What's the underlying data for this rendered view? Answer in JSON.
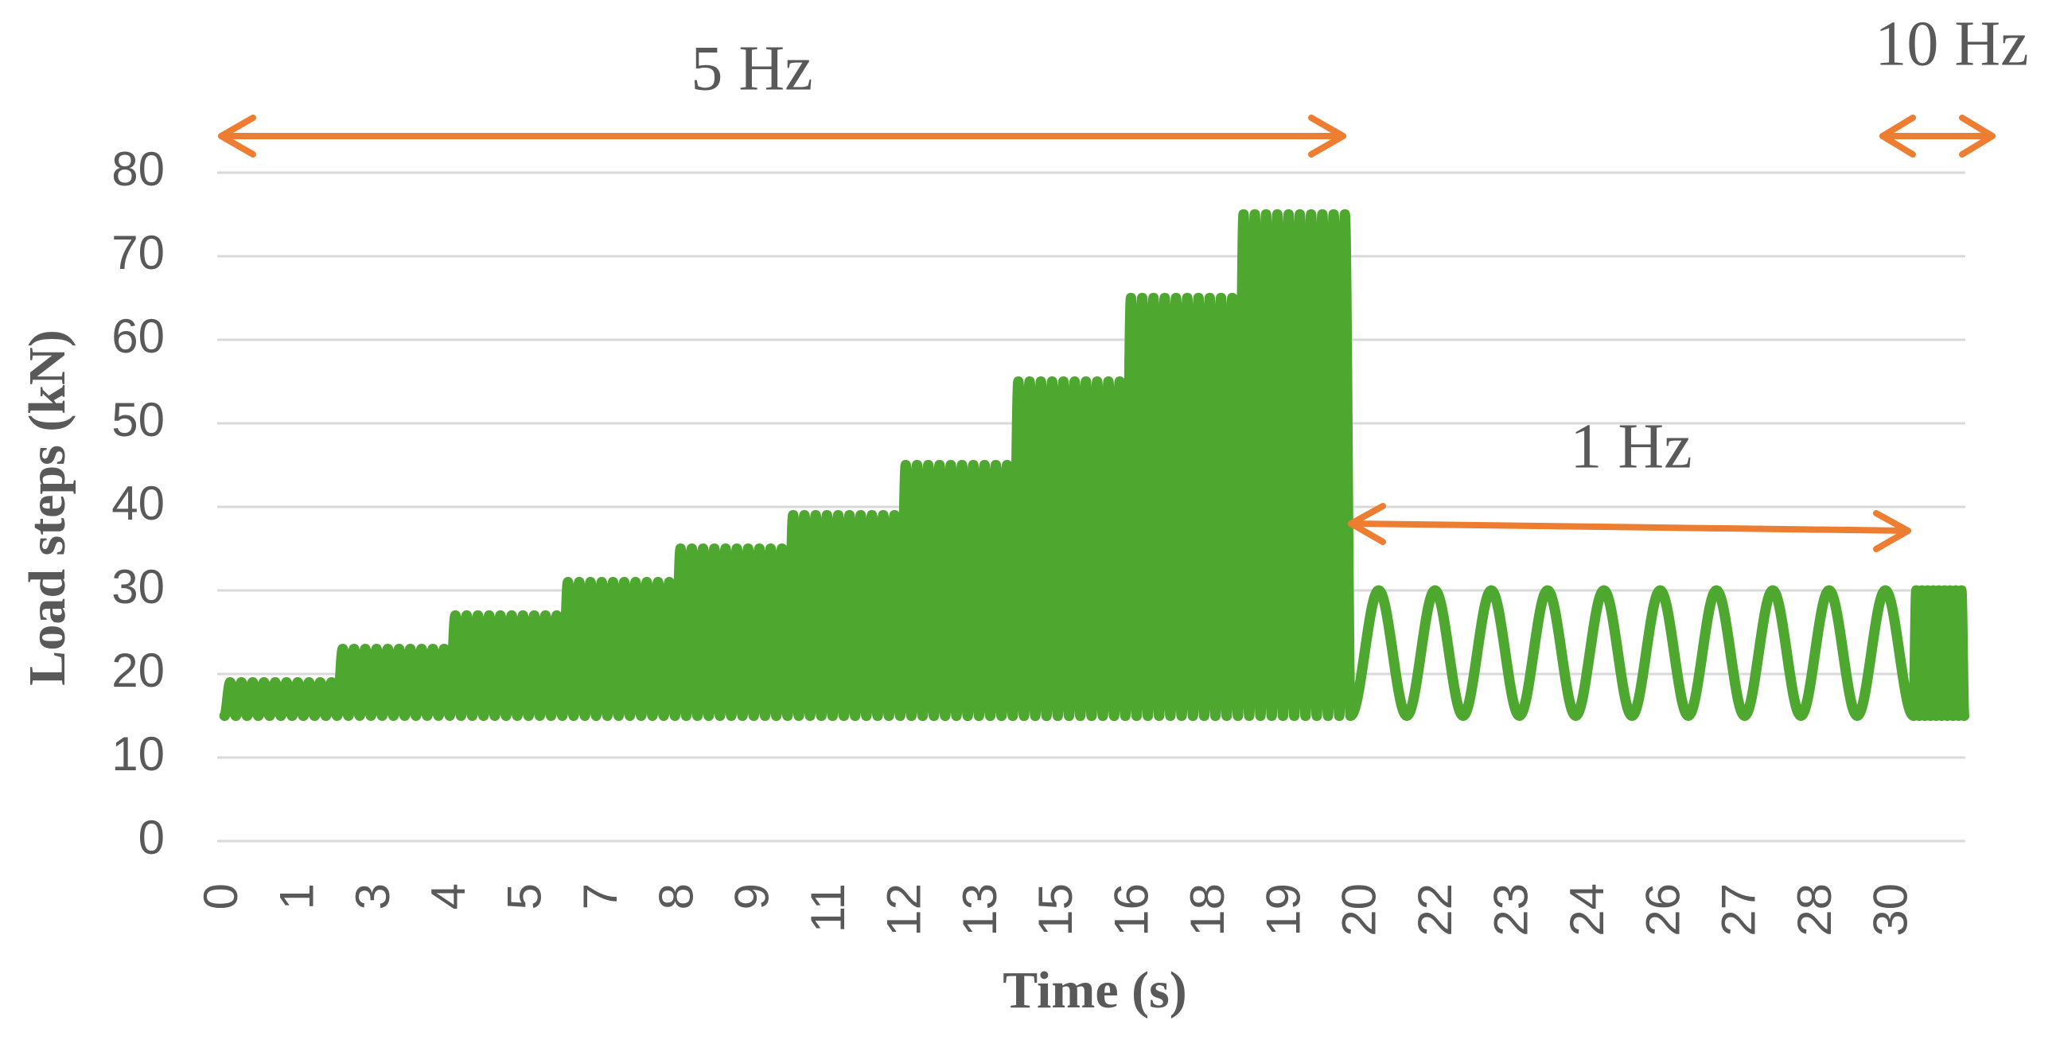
{
  "chart_data": {
    "type": "line",
    "x_label": "Time (s)",
    "y_label": "Load steps (kN)",
    "annotations": [
      "5 Hz",
      "1 Hz",
      "10 Hz"
    ],
    "annotation_color": "#ed7d31",
    "x": [
      0,
      0.1,
      0.2,
      0.3,
      0.4,
      0.5,
      0.6,
      0.7,
      0.8,
      0.9,
      1,
      1.1,
      1.2,
      1.3,
      1.4,
      1.5,
      1.6,
      1.7,
      1.8,
      1.9,
      2,
      2.1,
      2.2,
      2.3,
      2.4,
      2.5,
      2.6,
      2.7,
      2.8,
      2.9,
      3,
      3.1,
      3.2,
      3.3,
      3.4,
      3.5,
      3.6,
      3.7,
      3.8,
      3.9,
      4,
      4.1,
      4.2,
      4.3,
      4.4,
      4.5,
      4.6,
      4.7,
      4.8,
      4.9,
      5,
      5.1,
      5.2,
      5.3,
      5.4,
      5.5,
      5.6,
      5.7,
      5.8,
      5.9,
      6,
      6.1,
      6.2,
      6.3,
      6.4,
      6.5,
      6.6,
      6.7,
      6.8,
      6.9,
      7,
      7.1,
      7.2,
      7.3,
      7.4,
      7.5,
      7.6,
      7.7,
      7.8,
      7.9,
      8,
      8.1,
      8.2,
      8.3,
      8.4,
      8.5,
      8.6,
      8.7,
      8.8,
      8.9,
      9,
      9.1,
      9.2,
      9.3,
      9.4,
      9.5,
      9.6,
      9.7,
      9.8,
      9.9,
      10,
      10.1,
      10.2,
      10.3,
      10.4,
      10.5,
      10.6,
      10.7,
      10.8,
      10.9,
      11,
      11.1,
      11.2,
      11.3,
      11.4,
      11.5,
      11.6,
      11.7,
      11.8,
      11.9,
      12,
      12.1,
      12.2,
      12.3,
      12.4,
      12.5,
      12.6,
      12.7,
      12.8,
      12.9,
      13,
      13.1,
      13.2,
      13.3,
      13.4,
      13.5,
      13.6,
      13.7,
      13.8,
      13.9,
      14,
      14.1,
      14.2,
      14.3,
      14.4,
      14.5,
      14.6,
      14.7,
      14.8,
      14.9,
      15,
      15.1,
      15.2,
      15.3,
      15.4,
      15.5,
      15.6,
      15.7,
      15.8,
      15.9,
      16,
      16.1,
      16.2,
      16.3,
      16.4,
      16.5,
      16.6,
      16.7,
      16.8,
      16.9,
      17,
      17.1,
      17.2,
      17.3,
      17.4,
      17.5,
      17.6,
      17.7,
      17.8,
      17.9,
      18,
      18.1,
      18.2,
      18.3,
      18.4,
      18.5,
      18.6,
      18.7,
      18.8,
      18.9,
      19,
      19.1,
      19.2,
      19.3,
      19.4,
      19.5,
      19.6,
      19.7,
      19.8,
      19.9,
      20,
      20.5,
      21,
      21.5,
      22,
      22.5,
      23,
      23.5,
      24,
      24.5,
      25,
      25.5,
      26,
      26.5,
      27,
      27.5,
      28,
      28.5,
      29,
      29.5,
      30,
      30.05,
      30.1,
      30.15,
      30.2,
      30.25,
      30.3,
      30.35,
      30.4,
      30.45,
      30.5,
      30.55,
      30.6,
      30.65,
      30.7,
      30.75,
      30.8,
      30.85,
      30.9
    ],
    "series": [
      {
        "color": "#4ea72e",
        "values": [
          15,
          19,
          15,
          19,
          15,
          19,
          15,
          19,
          15,
          19,
          15,
          19,
          15,
          19,
          15,
          19,
          15,
          19,
          15,
          19,
          15,
          23,
          15,
          23,
          15,
          23,
          15,
          23,
          15,
          23,
          15,
          23,
          15,
          23,
          15,
          23,
          15,
          23,
          15,
          23,
          15,
          27,
          15,
          27,
          15,
          27,
          15,
          27,
          15,
          27,
          15,
          27,
          15,
          27,
          15,
          27,
          15,
          27,
          15,
          27,
          15,
          31,
          15,
          31,
          15,
          31,
          15,
          31,
          15,
          31,
          15,
          31,
          15,
          31,
          15,
          31,
          15,
          31,
          15,
          31,
          15,
          35,
          15,
          35,
          15,
          35,
          15,
          35,
          15,
          35,
          15,
          35,
          15,
          35,
          15,
          35,
          15,
          35,
          15,
          35,
          15,
          39,
          15,
          39,
          15,
          39,
          15,
          39,
          15,
          39,
          15,
          39,
          15,
          39,
          15,
          39,
          15,
          39,
          15,
          39,
          15,
          45,
          15,
          45,
          15,
          45,
          15,
          45,
          15,
          45,
          15,
          45,
          15,
          45,
          15,
          45,
          15,
          45,
          15,
          45,
          15,
          55,
          15,
          55,
          15,
          55,
          15,
          55,
          15,
          55,
          15,
          55,
          15,
          55,
          15,
          55,
          15,
          55,
          15,
          55,
          15,
          65,
          15,
          65,
          15,
          65,
          15,
          65,
          15,
          65,
          15,
          65,
          15,
          65,
          15,
          65,
          15,
          65,
          15,
          65,
          15,
          75,
          15,
          75,
          15,
          75,
          15,
          75,
          15,
          75,
          15,
          75,
          15,
          75,
          15,
          75,
          15,
          75,
          15,
          75,
          15,
          30,
          15,
          30,
          15,
          30,
          15,
          30,
          15,
          30,
          15,
          30,
          15,
          30,
          15,
          30,
          15,
          30,
          15,
          30,
          15,
          30,
          15,
          30,
          15,
          30,
          15,
          30,
          15,
          30,
          15,
          30,
          15,
          30,
          15,
          30,
          15,
          30,
          15
        ]
      }
    ],
    "xlim": [
      -0.13,
      30.92
    ],
    "xticks": [
      0,
      {
        "value": 1.348,
        "label": "1"
      },
      {
        "value": 2.696,
        "label": "3"
      },
      {
        "value": 4.044,
        "label": "4"
      },
      {
        "value": 5.392,
        "label": "5"
      },
      {
        "value": 6.74,
        "label": "7"
      },
      {
        "value": 8.088,
        "label": "8"
      },
      {
        "value": 9.436,
        "label": "9"
      },
      {
        "value": 10.784,
        "label": "11"
      },
      {
        "value": 12.132,
        "label": "12"
      },
      {
        "value": 13.48,
        "label": "13"
      },
      {
        "value": 14.828,
        "label": "15"
      },
      {
        "value": 16.176,
        "label": "16"
      },
      {
        "value": 17.524,
        "label": "18"
      },
      {
        "value": 18.872,
        "label": "19"
      },
      {
        "value": 20.22,
        "label": "20"
      },
      {
        "value": 21.568,
        "label": "22"
      },
      {
        "value": 22.916,
        "label": "23"
      },
      {
        "value": 24.264,
        "label": "24"
      },
      {
        "value": 25.612,
        "label": "26"
      },
      {
        "value": 26.96,
        "label": "27"
      },
      {
        "value": 28.308,
        "label": "28"
      },
      {
        "value": 29.656,
        "label": "30"
      }
    ],
    "ylim": [
      0,
      80
    ],
    "yticks": [
      0,
      10,
      20,
      30,
      40,
      50,
      60,
      70,
      80
    ],
    "grid": true
  }
}
